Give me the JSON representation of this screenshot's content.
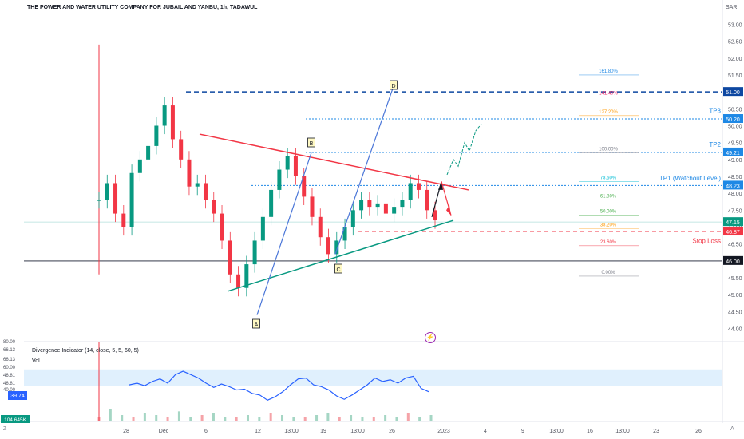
{
  "header": {
    "title": "THE POWER AND WATER UTILITY COMPANY FOR JUBAIL AND YANBU, 1h, TADAWUL",
    "currency": "SAR"
  },
  "indicator": {
    "title": "Divergence Indicator (14, close, 5, 5, 60, 5)",
    "vol_label": "Vol",
    "side_values": [
      "80.00",
      "66.13",
      "66.13",
      "60.00",
      "46.81",
      "46.81",
      "40.00"
    ],
    "current_badge": "39.74",
    "volume_badge": "104.645K"
  },
  "footer": {
    "left_label": "Z",
    "right_label": "A",
    "lightning_icon": "lightning-icon"
  },
  "chart_data": [
    {
      "type": "candlestick",
      "title": "THE POWER AND WATER UTILITY COMPANY FOR JUBAIL AND YANBU, 1h, TADAWUL",
      "ylim": [
        43.8,
        53.2
      ],
      "y_ticks": [
        "53.00",
        "52.50",
        "52.00",
        "51.50",
        "51.00",
        "50.50",
        "50.00",
        "49.50",
        "49.00",
        "48.50",
        "48.00",
        "47.50",
        "47.00",
        "46.50",
        "46.00",
        "45.50",
        "45.00",
        "44.50",
        "44.00"
      ],
      "x_ticks": [
        "28",
        "Dec",
        "6",
        "12",
        "13:00",
        "19",
        "13:00",
        "26",
        "2023",
        "4",
        "9",
        "13:00",
        "16",
        "13:00",
        "23",
        "26"
      ],
      "price_series": [
        47.8,
        48.3,
        47.4,
        47.0,
        48.6,
        49.0,
        49.4,
        50.0,
        50.6,
        49.6,
        49.0,
        48.2,
        48.3,
        47.8,
        47.4,
        46.6,
        45.6,
        45.2,
        45.9,
        46.6,
        47.3,
        48.1,
        48.7,
        49.1,
        48.5,
        47.9,
        47.3,
        46.7,
        46.2,
        46.6,
        47.0,
        47.5,
        47.8,
        47.6,
        47.7,
        47.4,
        47.6,
        47.8,
        48.3,
        48.1,
        47.5,
        47.2
      ],
      "price_labels": [
        {
          "text": "51.00",
          "value": 51.0,
          "color": "#0d47a1"
        },
        {
          "text": "50.20",
          "value": 50.2,
          "color": "#1e88e5"
        },
        {
          "text": "49.21",
          "value": 49.21,
          "color": "#1e88e5"
        },
        {
          "text": "48.23",
          "value": 48.23,
          "color": "#1e88e5"
        },
        {
          "text": "47.15",
          "value": 47.15,
          "color": "#089981"
        },
        {
          "text": "46.87",
          "value": 46.87,
          "color": "#f23645"
        },
        {
          "text": "46.00",
          "value": 46.0,
          "color": "#131722"
        }
      ],
      "fib_levels": [
        {
          "label": "161.80%",
          "value": 51.5,
          "color": "#1e88e5"
        },
        {
          "label": "141.40%",
          "value": 50.85,
          "color": "#e91e63"
        },
        {
          "label": "127.20%",
          "value": 50.3,
          "color": "#ff9800"
        },
        {
          "label": "100.00%",
          "value": 49.2,
          "color": "#787b86"
        },
        {
          "label": "78.60%",
          "value": 48.35,
          "color": "#00bcd4"
        },
        {
          "label": "61.80%",
          "value": 47.8,
          "color": "#4caf50"
        },
        {
          "label": "50.00%",
          "value": 47.35,
          "color": "#4caf50"
        },
        {
          "label": "38.20%",
          "value": 46.95,
          "color": "#ff9800"
        },
        {
          "label": "23.60%",
          "value": 46.45,
          "color": "#f23645"
        },
        {
          "label": "0.00%",
          "value": 45.55,
          "color": "#787b86"
        }
      ],
      "annotations": [
        {
          "text": "TP3",
          "value": 50.45,
          "color": "#1e88e5"
        },
        {
          "text": "TP2",
          "value": 49.45,
          "color": "#1e88e5"
        },
        {
          "text": "TP1 (Watchout Level)",
          "value": 48.45,
          "color": "#1e88e5"
        },
        {
          "text": "Stop Loss",
          "value": 46.6,
          "color": "#f23645"
        }
      ],
      "points": [
        {
          "label": "A",
          "value": 44.4
        },
        {
          "label": "B",
          "value": 49.4
        },
        {
          "label": "C",
          "value": 45.9
        },
        {
          "label": "D",
          "value": 51.35
        }
      ]
    },
    {
      "type": "line",
      "title": "Divergence Indicator (14, close, 5, 5, 60, 5)",
      "ylim": [
        20,
        80
      ],
      "values": [
        48,
        50,
        47,
        52,
        55,
        50,
        60,
        64,
        60,
        56,
        50,
        45,
        49,
        46,
        42,
        43,
        38,
        36,
        30,
        34,
        40,
        48,
        55,
        56,
        48,
        46,
        42,
        35,
        31,
        36,
        42,
        48,
        56,
        52,
        54,
        50,
        56,
        58,
        44,
        40
      ]
    },
    {
      "type": "bar",
      "title": "Vol",
      "values": [
        2,
        6,
        3,
        2,
        4,
        3,
        2,
        5,
        2,
        3,
        4,
        2,
        2,
        3,
        2,
        4,
        3,
        2,
        2,
        3,
        4,
        2,
        3,
        2,
        2,
        3,
        2,
        4,
        2,
        3
      ]
    }
  ]
}
